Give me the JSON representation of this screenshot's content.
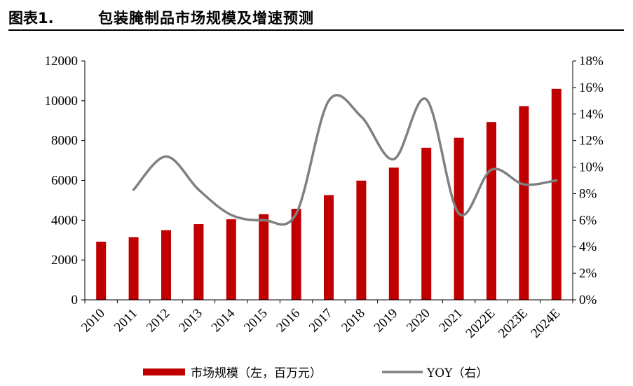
{
  "header": {
    "figure_label": "图表1.",
    "title": "包装腌制品市场规模及增速预测"
  },
  "chart_data": {
    "type": "bar",
    "categories": [
      "2010",
      "2011",
      "2012",
      "2013",
      "2014",
      "2015",
      "2016",
      "2017",
      "2018",
      "2019",
      "2020",
      "2021",
      "2022E",
      "2023E",
      "2024E"
    ],
    "series": [
      {
        "name": "市场规模（左，百万元）",
        "type": "bar",
        "axis": "left",
        "color": "#c00000",
        "values": [
          2920,
          3150,
          3500,
          3800,
          4050,
          4300,
          4570,
          5260,
          5990,
          6640,
          7640,
          8140,
          8930,
          9730,
          10600
        ]
      },
      {
        "name": "YOY（右）",
        "type": "line",
        "axis": "right",
        "color": "#808080",
        "values": [
          null,
          8.3,
          10.8,
          8.3,
          6.4,
          6.0,
          6.5,
          15.0,
          13.8,
          10.6,
          15.1,
          6.5,
          9.8,
          8.7,
          9.0
        ]
      }
    ],
    "y_left": {
      "min": 0,
      "max": 12000,
      "ticks": [
        "0",
        "2000",
        "4000",
        "6000",
        "8000",
        "10000",
        "12000"
      ]
    },
    "y_right": {
      "min": 0,
      "max": 18,
      "ticks": [
        "0%",
        "2%",
        "4%",
        "6%",
        "8%",
        "10%",
        "12%",
        "14%",
        "16%",
        "18%"
      ]
    },
    "grid": false,
    "legend_position": "bottom"
  }
}
